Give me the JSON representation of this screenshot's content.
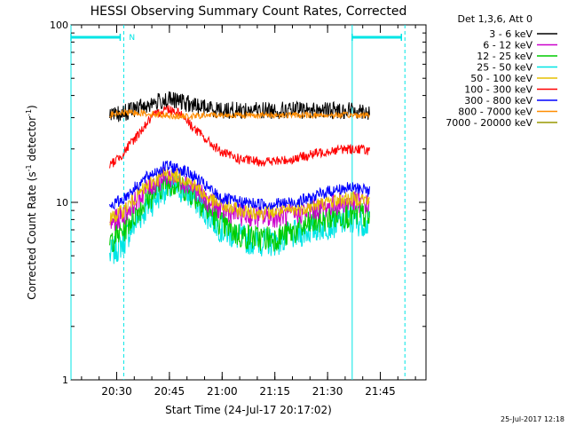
{
  "chart_data": {
    "type": "line",
    "title": "HESSI Observing Summary Count Rates, Corrected",
    "xlabel": "Start Time (24-Jul-17 20:17:02)",
    "ylabel_main": "Corrected Count Rate (s",
    "ylabel_sup1": "-1",
    "ylabel_mid": " detector",
    "ylabel_sup2": "-1",
    "ylabel_end": ")",
    "y_scale": "log",
    "ylim": [
      1,
      100
    ],
    "y_ticks": [
      {
        "value": 1,
        "label": "1"
      },
      {
        "value": 10,
        "label": "10"
      },
      {
        "value": 100,
        "label": "100"
      }
    ],
    "x_range_minutes": [
      "20:17",
      "21:58"
    ],
    "x_ticks": [
      {
        "time": "20:30",
        "label": "20:30"
      },
      {
        "time": "20:45",
        "label": "20:45"
      },
      {
        "time": "21:00",
        "label": "21:00"
      },
      {
        "time": "21:15",
        "label": "21:15"
      },
      {
        "time": "21:30",
        "label": "21:30"
      },
      {
        "time": "21:45",
        "label": "21:45"
      }
    ],
    "legend_title": "Det 1,3,6, Att 0",
    "legend_position": "right",
    "series": [
      {
        "name": "3 - 6 keV",
        "color": "#000000",
        "times": [
          "20:28",
          "20:32",
          "20:36",
          "20:40",
          "20:44",
          "20:48",
          "20:52",
          "20:56",
          "21:00",
          "21:05",
          "21:10",
          "21:15",
          "21:20",
          "21:25",
          "21:30",
          "21:35",
          "21:40",
          "21:42"
        ],
        "values": [
          30,
          32,
          34,
          36,
          38,
          37,
          35,
          34,
          33,
          33,
          33,
          33,
          33,
          33,
          33,
          33,
          33,
          32
        ]
      },
      {
        "name": "6 - 12 keV",
        "color": "#cc00cc",
        "times": [
          "20:28",
          "20:32",
          "20:36",
          "20:40",
          "20:44",
          "20:48",
          "20:52",
          "20:56",
          "21:00",
          "21:05",
          "21:10",
          "21:15",
          "21:20",
          "21:25",
          "21:30",
          "21:35",
          "21:40",
          "21:42"
        ],
        "values": [
          7.5,
          8.5,
          10.5,
          12.5,
          14,
          13.5,
          12,
          10,
          9,
          8.5,
          8.3,
          8.3,
          8.5,
          9,
          9.5,
          10,
          10,
          9.5
        ]
      },
      {
        "name": "12 - 25 keV",
        "color": "#00cc00",
        "times": [
          "20:28",
          "20:32",
          "20:36",
          "20:40",
          "20:44",
          "20:48",
          "20:52",
          "20:56",
          "21:00",
          "21:05",
          "21:10",
          "21:15",
          "21:20",
          "21:25",
          "21:30",
          "21:35",
          "21:40",
          "21:42"
        ],
        "values": [
          6,
          7,
          9,
          11,
          13,
          12.5,
          11,
          9,
          7.5,
          6.5,
          6.3,
          6.3,
          6.8,
          7.5,
          8.2,
          8.5,
          8.5,
          8
        ]
      },
      {
        "name": "25 - 50 keV",
        "color": "#00e5e5",
        "times": [
          "20:28",
          "20:32",
          "20:36",
          "20:40",
          "20:44",
          "20:48",
          "20:52",
          "20:56",
          "21:00",
          "21:05",
          "21:10",
          "21:15",
          "21:20",
          "21:25",
          "21:30",
          "21:35",
          "21:40",
          "21:42"
        ],
        "values": [
          5,
          6,
          8,
          10,
          12,
          12,
          10.5,
          8.5,
          7,
          6.3,
          6,
          6,
          6.5,
          7,
          7.5,
          7.8,
          7.8,
          7.5
        ]
      },
      {
        "name": "50 - 100 keV",
        "color": "#e5c000",
        "times": [
          "20:28",
          "20:32",
          "20:36",
          "20:40",
          "20:44",
          "20:48",
          "20:52",
          "20:56",
          "21:00",
          "21:05",
          "21:10",
          "21:15",
          "21:20",
          "21:25",
          "21:30",
          "21:35",
          "21:40",
          "21:42"
        ],
        "values": [
          8,
          9,
          11,
          13,
          14.5,
          14,
          12.5,
          10.5,
          9.5,
          9,
          8.8,
          8.8,
          9,
          9.5,
          10,
          10.5,
          10.5,
          10
        ]
      },
      {
        "name": "100 - 300 keV",
        "color": "#ff0000",
        "times": [
          "20:28",
          "20:32",
          "20:36",
          "20:40",
          "20:44",
          "20:48",
          "20:52",
          "20:56",
          "21:00",
          "21:05",
          "21:10",
          "21:15",
          "21:20",
          "21:25",
          "21:30",
          "21:35",
          "21:40",
          "21:42"
        ],
        "values": [
          16,
          19,
          24,
          30,
          34,
          32,
          26,
          22,
          19,
          17.5,
          17,
          17,
          17.5,
          18.5,
          19.5,
          20,
          20,
          19.5
        ]
      },
      {
        "name": "300 - 800 keV",
        "color": "#0000ff",
        "times": [
          "20:28",
          "20:32",
          "20:36",
          "20:40",
          "20:44",
          "20:48",
          "20:52",
          "20:56",
          "21:00",
          "21:05",
          "21:10",
          "21:15",
          "21:20",
          "21:25",
          "21:30",
          "21:35",
          "21:40",
          "21:42"
        ],
        "values": [
          9.5,
          10.5,
          12.5,
          14.5,
          16,
          15.5,
          14,
          12,
          10.5,
          10,
          9.8,
          9.8,
          10,
          10.5,
          11.5,
          12,
          12,
          11.5
        ]
      },
      {
        "name": "800 - 7000 keV",
        "color": "#ff8c00",
        "times": [
          "20:28",
          "20:32",
          "20:36",
          "20:40",
          "20:44",
          "20:48",
          "20:52",
          "20:56",
          "21:00",
          "21:05",
          "21:10",
          "21:15",
          "21:20",
          "21:25",
          "21:30",
          "21:35",
          "21:40",
          "21:42"
        ],
        "values": [
          31,
          32,
          32,
          31.5,
          31,
          30.5,
          30.5,
          31,
          31,
          31,
          31,
          31,
          31,
          31,
          31,
          31,
          31,
          31
        ]
      },
      {
        "name": "7000 - 20000 keV",
        "color": "#999900",
        "times": [],
        "values": []
      }
    ],
    "status_bars": {
      "color": "#00e5e5",
      "segments": [
        {
          "from": "20:17",
          "to": "20:31"
        },
        {
          "from": "21:37",
          "to": "21:51"
        }
      ],
      "marker_label": "N",
      "marker_time": "20:32"
    },
    "vertical_lines": [
      {
        "time": "20:17",
        "style": "solid"
      },
      {
        "time": "20:32",
        "style": "dashed"
      },
      {
        "time": "21:37",
        "style": "solid"
      },
      {
        "time": "21:52",
        "style": "dashed"
      }
    ],
    "data_window": [
      "20:28",
      "21:42"
    ],
    "timestamp": "25-Jul-2017 12:18"
  }
}
